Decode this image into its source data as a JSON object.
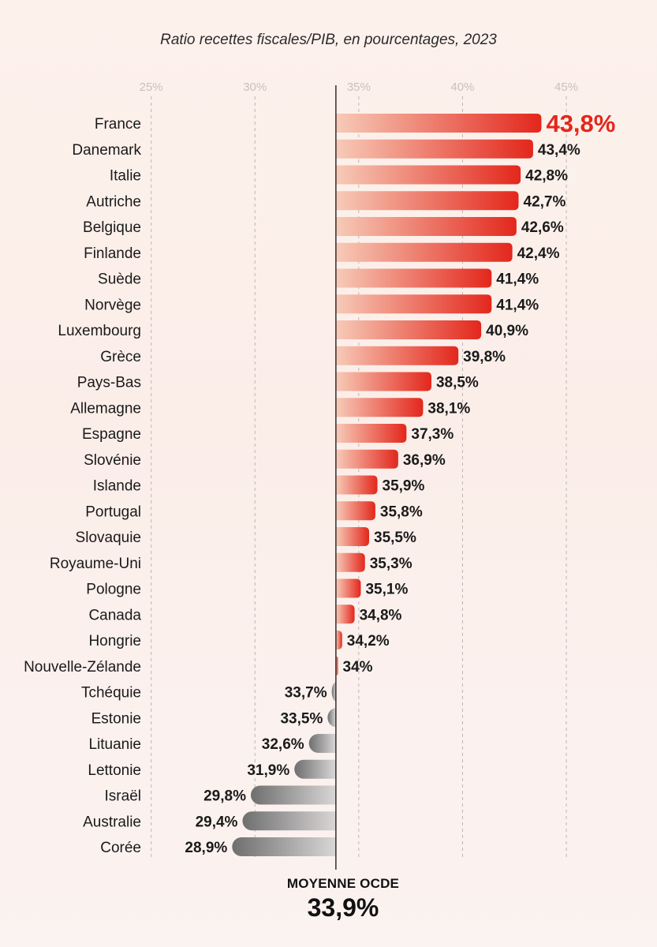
{
  "chart_data": {
    "type": "bar",
    "orientation": "horizontal",
    "title": "Ratio recettes fiscales/PIB, en pourcentages, 2023",
    "unit": "%",
    "xlim": [
      23,
      48
    ],
    "ticks": [
      25,
      30,
      35,
      40,
      45
    ],
    "tick_labels": [
      "25%",
      "30%",
      "35%",
      "40%",
      "45%"
    ],
    "grid": true,
    "baseline": 33.9,
    "highlight": "France",
    "categories": [
      "France",
      "Danemark",
      "Italie",
      "Autriche",
      "Belgique",
      "Finlande",
      "Suède",
      "Norvège",
      "Luxembourg",
      "Grèce",
      "Pays-Bas",
      "Allemagne",
      "Espagne",
      "Slovénie",
      "Islande",
      "Portugal",
      "Slovaquie",
      "Royaume-Uni",
      "Pologne",
      "Canada",
      "Hongrie",
      "Nouvelle-Zélande",
      "Tchéquie",
      "Estonie",
      "Lituanie",
      "Lettonie",
      "Israël",
      "Australie",
      "Corée"
    ],
    "values": [
      43.8,
      43.4,
      42.8,
      42.7,
      42.6,
      42.4,
      41.4,
      41.4,
      40.9,
      39.8,
      38.5,
      38.1,
      37.3,
      36.9,
      35.9,
      35.8,
      35.5,
      35.3,
      35.1,
      34.8,
      34.2,
      34.0,
      33.7,
      33.5,
      32.6,
      31.9,
      29.8,
      29.4,
      28.9
    ],
    "value_labels": [
      "43,8%",
      "43,4%",
      "42,8%",
      "42,7%",
      "42,6%",
      "42,4%",
      "41,4%",
      "41,4%",
      "40,9%",
      "39,8%",
      "38,5%",
      "38,1%",
      "37,3%",
      "36,9%",
      "35,9%",
      "35,8%",
      "35,5%",
      "35,3%",
      "35,1%",
      "34,8%",
      "34,2%",
      "34%",
      "33,7%",
      "33,5%",
      "32,6%",
      "31,9%",
      "29,8%",
      "29,4%",
      "28,9%"
    ]
  },
  "average": {
    "label": "MOYENNE OCDE",
    "value_label": "33,9%"
  },
  "colors": {
    "above_start": "#f7cbb8",
    "above_end": "#e3271c",
    "below_start": "#d9d6d6",
    "below_end": "#6f6f6f",
    "highlight_text": "#e3271c"
  }
}
